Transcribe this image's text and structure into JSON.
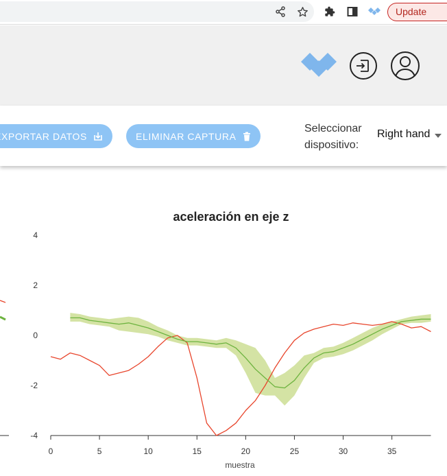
{
  "browser": {
    "update_label": "Update",
    "menu_glyph": "⋮",
    "icons": [
      "share-icon",
      "star-icon",
      "extensions-icon",
      "side-panel-icon",
      "app-extension-icon"
    ]
  },
  "header": {
    "icons": [
      "logo-icon",
      "login-icon",
      "user-icon"
    ]
  },
  "actions": {
    "export_label": "EXPORTAR DATOS",
    "delete_label": "ELIMINAR CAPTURA",
    "device_label_line1": "Seleccionar",
    "device_label_line2": "dispositivo:",
    "device_value": "Right hand"
  },
  "colors": {
    "accent_button": "#8ec4f5",
    "red_series": "#e8452c",
    "green_series": "#6db33f",
    "green_band": "#cfe09a",
    "update_text": "#b3261e"
  },
  "chart_data": {
    "type": "line",
    "title": "aceleración en eje z",
    "xlabel": "muestra",
    "ylabel": "",
    "xlim": [
      0,
      39
    ],
    "ylim": [
      -4,
      4
    ],
    "x_ticks": [
      0,
      5,
      10,
      15,
      20,
      25,
      30,
      35
    ],
    "y_ticks": [
      4,
      2,
      0,
      -2,
      -4
    ],
    "series": [
      {
        "name": "",
        "color": "#e8452c",
        "x": [
          0,
          1,
          2,
          3,
          4,
          5,
          6,
          7,
          8,
          9,
          10,
          11,
          12,
          13,
          14,
          15,
          16,
          17,
          18,
          19,
          20,
          21,
          22,
          23,
          24,
          25,
          26,
          27,
          28,
          29,
          30,
          31,
          32,
          33,
          34,
          35,
          36,
          37,
          38,
          39
        ],
        "values": [
          -0.85,
          -0.95,
          -0.7,
          -0.8,
          -1.0,
          -1.2,
          -1.6,
          -1.5,
          -1.4,
          -1.15,
          -0.85,
          -0.45,
          -0.1,
          0.0,
          -0.3,
          -1.7,
          -3.5,
          -4.0,
          -3.8,
          -3.5,
          -3.0,
          -2.6,
          -2.0,
          -1.3,
          -0.7,
          -0.2,
          0.1,
          0.25,
          0.35,
          0.45,
          0.4,
          0.5,
          0.45,
          0.4,
          0.45,
          0.55,
          0.45,
          0.3,
          0.35,
          0.15
        ]
      },
      {
        "name": "",
        "color": "#6db33f",
        "x": [
          2,
          3,
          4,
          5,
          6,
          7,
          8,
          9,
          10,
          11,
          12,
          13,
          14,
          15,
          16,
          17,
          18,
          19,
          20,
          21,
          22,
          23,
          24,
          25,
          26,
          27,
          28,
          29,
          30,
          31,
          32,
          33,
          34,
          35,
          36,
          37,
          38,
          39
        ],
        "values": [
          0.7,
          0.7,
          0.6,
          0.55,
          0.5,
          0.45,
          0.5,
          0.4,
          0.3,
          0.15,
          0.0,
          -0.15,
          -0.25,
          -0.25,
          -0.3,
          -0.35,
          -0.3,
          -0.5,
          -0.9,
          -1.35,
          -1.7,
          -2.05,
          -2.1,
          -1.8,
          -1.3,
          -0.9,
          -0.7,
          -0.65,
          -0.5,
          -0.35,
          -0.15,
          0.05,
          0.25,
          0.4,
          0.55,
          0.6,
          0.65,
          0.65
        ],
        "band_low": [
          0.55,
          0.55,
          0.45,
          0.4,
          0.35,
          0.2,
          0.15,
          0.1,
          0.05,
          -0.05,
          -0.2,
          -0.3,
          -0.4,
          -0.4,
          -0.45,
          -0.5,
          -0.5,
          -0.8,
          -1.5,
          -2.3,
          -2.4,
          -2.4,
          -2.8,
          -2.4,
          -1.7,
          -1.1,
          -0.9,
          -0.85,
          -0.75,
          -0.6,
          -0.4,
          -0.2,
          0.05,
          0.25,
          0.45,
          0.5,
          0.5,
          0.55
        ],
        "band_high": [
          0.9,
          0.85,
          0.75,
          0.7,
          0.65,
          0.7,
          0.75,
          0.7,
          0.55,
          0.35,
          0.2,
          -0.0,
          -0.1,
          -0.1,
          -0.15,
          -0.2,
          -0.1,
          -0.2,
          -0.35,
          -0.5,
          -1.0,
          -1.7,
          -1.5,
          -1.2,
          -0.8,
          -0.7,
          -0.5,
          -0.45,
          -0.3,
          -0.1,
          0.1,
          0.3,
          0.45,
          0.55,
          0.65,
          0.75,
          0.8,
          0.85
        ]
      }
    ],
    "grid": false,
    "legend": "none"
  }
}
